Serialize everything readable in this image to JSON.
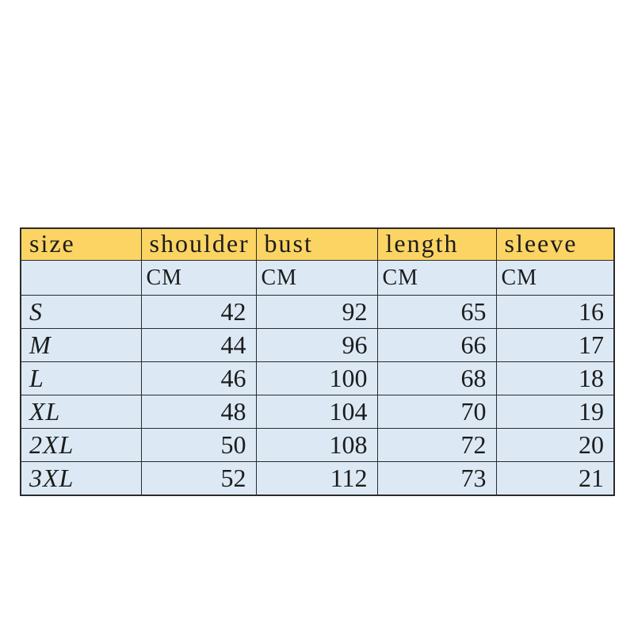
{
  "colors": {
    "header_bg": "#fbd463",
    "body_row_bg": "#dce9f5",
    "border": "#2b2b2b",
    "page_bg": "#ffffff"
  },
  "chart_data": {
    "type": "table",
    "title": "",
    "unit": "CM",
    "columns": [
      "size",
      "shoulder",
      "bust",
      "length",
      "sleeve"
    ],
    "unit_row": {
      "size": "",
      "shoulder": "CM",
      "bust": "CM",
      "length": "CM",
      "sleeve": "CM"
    },
    "rows": [
      {
        "size": "S",
        "shoulder": 42,
        "bust": 92,
        "length": 65,
        "sleeve": 16
      },
      {
        "size": "M",
        "shoulder": 44,
        "bust": 96,
        "length": 66,
        "sleeve": 17
      },
      {
        "size": "L",
        "shoulder": 46,
        "bust": 100,
        "length": 68,
        "sleeve": 18
      },
      {
        "size": "XL",
        "shoulder": 48,
        "bust": 104,
        "length": 70,
        "sleeve": 19
      },
      {
        "size": "2XL",
        "shoulder": 50,
        "bust": 108,
        "length": 72,
        "sleeve": 20
      },
      {
        "size": "3XL",
        "shoulder": 52,
        "bust": 112,
        "length": 73,
        "sleeve": 21
      }
    ]
  }
}
